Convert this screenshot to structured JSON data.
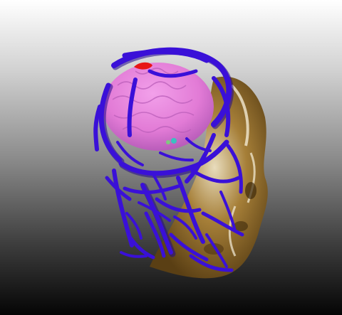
{
  "scene": {
    "colors": {
      "vessels": "#3a10d8",
      "vessels_dark": "#22078f",
      "brain": "#e27bd6",
      "brain_shadow": "#b056b4",
      "skull": "#8d6a2c",
      "skull_highlight": "#f2ead2",
      "lesion": "#e81616",
      "lesion_accent": "#22d0c0"
    }
  }
}
